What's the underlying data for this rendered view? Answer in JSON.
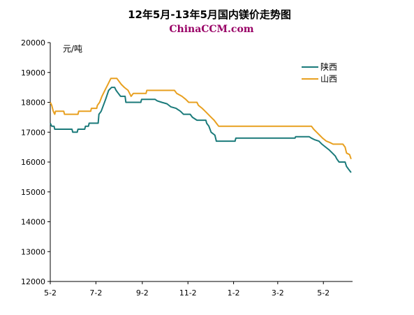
{
  "chart_data": {
    "type": "line",
    "title": "12年5月-13年5月国内镁价走势图",
    "subtitle": "ChinaCCM.com",
    "ylabel": "元/吨",
    "xlabel": "",
    "ylim": [
      12000,
      20000
    ],
    "yticks": [
      12000,
      13000,
      14000,
      15000,
      16000,
      17000,
      18000,
      19000,
      20000
    ],
    "xlim": [
      "2012-05-02",
      "2013-06-10"
    ],
    "xticks": [
      {
        "date": "2012-05-02",
        "label": "5-2"
      },
      {
        "date": "2012-07-02",
        "label": "7-2"
      },
      {
        "date": "2012-09-02",
        "label": "9-2"
      },
      {
        "date": "2012-11-02",
        "label": "11-2"
      },
      {
        "date": "2013-01-02",
        "label": "1-2"
      },
      {
        "date": "2013-03-02",
        "label": "3-2"
      },
      {
        "date": "2013-05-02",
        "label": "5-2"
      }
    ],
    "grid": false,
    "legend_position": "top-right",
    "series": [
      {
        "name": "陕西",
        "color": "#1a7a7a",
        "points": [
          [
            "2012-05-02",
            17300
          ],
          [
            "2012-05-04",
            17200
          ],
          [
            "2012-05-07",
            17200
          ],
          [
            "2012-05-08",
            17100
          ],
          [
            "2012-05-31",
            17100
          ],
          [
            "2012-06-01",
            17000
          ],
          [
            "2012-06-07",
            17000
          ],
          [
            "2012-06-08",
            17100
          ],
          [
            "2012-06-17",
            17100
          ],
          [
            "2012-06-18",
            17200
          ],
          [
            "2012-06-22",
            17200
          ],
          [
            "2012-06-23",
            17300
          ],
          [
            "2012-07-05",
            17300
          ],
          [
            "2012-07-06",
            17600
          ],
          [
            "2012-07-09",
            17700
          ],
          [
            "2012-07-12",
            17900
          ],
          [
            "2012-07-15",
            18100
          ],
          [
            "2012-07-19",
            18400
          ],
          [
            "2012-07-23",
            18500
          ],
          [
            "2012-07-27",
            18500
          ],
          [
            "2012-07-29",
            18400
          ],
          [
            "2012-08-01",
            18300
          ],
          [
            "2012-08-04",
            18200
          ],
          [
            "2012-08-10",
            18200
          ],
          [
            "2012-08-11",
            18000
          ],
          [
            "2012-08-31",
            18000
          ],
          [
            "2012-09-01",
            18100
          ],
          [
            "2012-09-19",
            18100
          ],
          [
            "2012-09-22",
            18050
          ],
          [
            "2012-09-28",
            18000
          ],
          [
            "2012-10-05",
            17950
          ],
          [
            "2012-10-10",
            17850
          ],
          [
            "2012-10-17",
            17800
          ],
          [
            "2012-10-23",
            17700
          ],
          [
            "2012-10-27",
            17600
          ],
          [
            "2012-11-05",
            17600
          ],
          [
            "2012-11-08",
            17500
          ],
          [
            "2012-11-14",
            17400
          ],
          [
            "2012-11-26",
            17400
          ],
          [
            "2012-11-27",
            17300
          ],
          [
            "2012-11-30",
            17200
          ],
          [
            "2012-12-03",
            17000
          ],
          [
            "2012-12-08",
            16900
          ],
          [
            "2012-12-10",
            16700
          ],
          [
            "2013-01-04",
            16700
          ],
          [
            "2013-01-05",
            16800
          ],
          [
            "2013-03-25",
            16800
          ],
          [
            "2013-03-26",
            16850
          ],
          [
            "2013-04-13",
            16850
          ],
          [
            "2013-04-16",
            16800
          ],
          [
            "2013-04-20",
            16750
          ],
          [
            "2013-04-26",
            16700
          ],
          [
            "2013-04-30",
            16600
          ],
          [
            "2013-05-05",
            16500
          ],
          [
            "2013-05-10",
            16400
          ],
          [
            "2013-05-14",
            16300
          ],
          [
            "2013-05-18",
            16200
          ],
          [
            "2013-05-20",
            16100
          ],
          [
            "2013-05-23",
            16000
          ],
          [
            "2013-05-31",
            16000
          ],
          [
            "2013-06-02",
            15850
          ],
          [
            "2013-06-05",
            15750
          ],
          [
            "2013-06-08",
            15650
          ]
        ]
      },
      {
        "name": "山西",
        "color": "#e8a020",
        "points": [
          [
            "2012-05-02",
            18000
          ],
          [
            "2012-05-04",
            17900
          ],
          [
            "2012-05-06",
            17700
          ],
          [
            "2012-05-08",
            17600
          ],
          [
            "2012-05-09",
            17700
          ],
          [
            "2012-05-20",
            17700
          ],
          [
            "2012-05-21",
            17600
          ],
          [
            "2012-06-08",
            17600
          ],
          [
            "2012-06-09",
            17700
          ],
          [
            "2012-06-25",
            17700
          ],
          [
            "2012-06-26",
            17800
          ],
          [
            "2012-07-03",
            17800
          ],
          [
            "2012-07-04",
            17900
          ],
          [
            "2012-07-07",
            18000
          ],
          [
            "2012-07-10",
            18200
          ],
          [
            "2012-07-14",
            18400
          ],
          [
            "2012-07-18",
            18600
          ],
          [
            "2012-07-22",
            18800
          ],
          [
            "2012-07-30",
            18800
          ],
          [
            "2012-08-02",
            18700
          ],
          [
            "2012-08-05",
            18600
          ],
          [
            "2012-08-09",
            18500
          ],
          [
            "2012-08-14",
            18400
          ],
          [
            "2012-08-18",
            18200
          ],
          [
            "2012-08-21",
            18300
          ],
          [
            "2012-09-07",
            18300
          ],
          [
            "2012-09-08",
            18400
          ],
          [
            "2012-10-15",
            18400
          ],
          [
            "2012-10-18",
            18300
          ],
          [
            "2012-10-25",
            18200
          ],
          [
            "2012-10-30",
            18100
          ],
          [
            "2012-11-03",
            18000
          ],
          [
            "2012-11-14",
            18000
          ],
          [
            "2012-11-16",
            17900
          ],
          [
            "2012-11-21",
            17800
          ],
          [
            "2012-11-25",
            17700
          ],
          [
            "2012-11-29",
            17600
          ],
          [
            "2012-12-03",
            17500
          ],
          [
            "2012-12-07",
            17400
          ],
          [
            "2012-12-10",
            17300
          ],
          [
            "2012-12-13",
            17200
          ],
          [
            "2013-04-16",
            17200
          ],
          [
            "2013-04-19",
            17100
          ],
          [
            "2013-04-23",
            17000
          ],
          [
            "2013-04-27",
            16900
          ],
          [
            "2013-05-01",
            16800
          ],
          [
            "2013-05-06",
            16700
          ],
          [
            "2013-05-11",
            16650
          ],
          [
            "2013-05-15",
            16600
          ],
          [
            "2013-05-28",
            16600
          ],
          [
            "2013-05-31",
            16500
          ],
          [
            "2013-06-02",
            16300
          ],
          [
            "2013-06-06",
            16250
          ],
          [
            "2013-06-08",
            16100
          ]
        ]
      }
    ]
  }
}
